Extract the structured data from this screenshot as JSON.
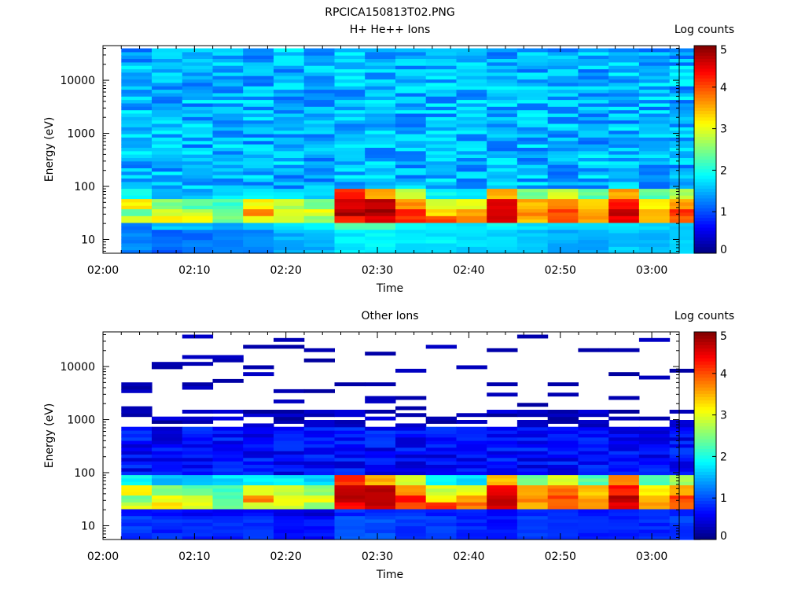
{
  "page_title": "RPCICA150813T02.PNG",
  "chart_data": [
    {
      "type": "heatmap",
      "title": "H+ He++ Ions",
      "xlabel": "Time",
      "ylabel": "Energy (eV)",
      "colorbar_label": "Log counts",
      "x_ticks": [
        "02:00",
        "02:10",
        "02:20",
        "02:30",
        "02:40",
        "02:50",
        "03:00"
      ],
      "xlim_minutes": [
        0,
        63
      ],
      "y_ticks": [
        "10",
        "100",
        "1000",
        "10000"
      ],
      "y_scale": "log",
      "ylim": [
        5.5,
        45000
      ],
      "colorbar_ticks": [
        "0",
        "1",
        "2",
        "3",
        "4",
        "5"
      ],
      "clim": [
        0,
        5
      ],
      "low_energy_profile": [
        [
          2.9,
          1.3,
          1.2,
          2.4,
          3.2,
          1.9
        ],
        [
          3.2,
          1.1,
          1.6,
          3.0,
          2.5,
          1.5
        ],
        [
          3.0,
          1.2,
          1.6,
          2.8,
          2.3,
          1.5
        ],
        [
          2.4,
          1.2,
          1.4,
          2.3,
          2.2,
          1.7
        ],
        [
          2.9,
          1.3,
          1.5,
          3.7,
          3.1,
          1.9
        ],
        [
          3.0,
          1.5,
          1.8,
          3.1,
          2.8,
          1.8
        ],
        [
          2.5,
          1.5,
          1.8,
          3.0,
          2.5,
          1.7
        ],
        [
          4.3,
          1.8,
          2.3,
          4.8,
          4.6,
          4.2
        ],
        [
          4.6,
          1.9,
          2.2,
          4.8,
          4.7,
          3.5
        ],
        [
          4.1,
          1.8,
          2.0,
          4.4,
          3.7,
          2.9
        ],
        [
          4.1,
          1.8,
          1.9,
          3.2,
          2.9,
          1.9
        ],
        [
          3.8,
          1.7,
          1.8,
          3.5,
          3.0,
          1.7
        ],
        [
          4.6,
          1.7,
          1.9,
          4.7,
          4.5,
          3.5
        ],
        [
          3.4,
          1.6,
          1.7,
          3.7,
          3.5,
          2.4
        ],
        [
          4.0,
          1.5,
          1.7,
          4.0,
          3.8,
          2.9
        ],
        [
          3.6,
          1.5,
          1.7,
          3.6,
          3.4,
          2.3
        ],
        [
          4.5,
          1.6,
          1.7,
          4.7,
          4.3,
          3.6
        ],
        [
          3.5,
          1.5,
          1.6,
          3.5,
          3.2,
          2.3
        ],
        [
          4.0,
          1.6,
          1.7,
          4.1,
          3.6,
          2.7
        ]
      ]
    },
    {
      "type": "heatmap",
      "title": "Other Ions",
      "xlabel": "Time",
      "ylabel": "Energy (eV)",
      "colorbar_label": "Log counts",
      "x_ticks": [
        "02:00",
        "02:10",
        "02:20",
        "02:30",
        "02:40",
        "02:50",
        "03:00"
      ],
      "xlim_minutes": [
        0,
        63
      ],
      "y_ticks": [
        "10",
        "100",
        "1000",
        "10000"
      ],
      "y_scale": "log",
      "ylim": [
        5.5,
        45000
      ],
      "colorbar_ticks": [
        "0",
        "1",
        "2",
        "3",
        "4",
        "5"
      ],
      "clim": [
        0,
        5
      ],
      "low_energy_profile": [
        [
          2.9,
          0.9,
          0.6,
          2.4,
          3.2,
          1.9
        ],
        [
          3.2,
          0.8,
          0.7,
          3.0,
          2.5,
          1.5
        ],
        [
          3.0,
          0.8,
          0.6,
          2.8,
          2.3,
          1.5
        ],
        [
          2.4,
          0.8,
          0.5,
          2.3,
          2.2,
          1.7
        ],
        [
          2.9,
          0.8,
          0.7,
          3.7,
          3.1,
          1.9
        ],
        [
          3.0,
          0.7,
          0.5,
          3.1,
          2.8,
          1.8
        ],
        [
          2.5,
          0.7,
          0.4,
          3.0,
          2.5,
          1.7
        ],
        [
          4.3,
          1.0,
          0.8,
          4.8,
          4.6,
          4.2
        ],
        [
          4.6,
          1.0,
          0.9,
          4.8,
          4.7,
          3.5
        ],
        [
          4.1,
          0.9,
          0.8,
          4.4,
          3.7,
          2.9
        ],
        [
          4.1,
          0.9,
          0.8,
          3.2,
          2.9,
          1.9
        ],
        [
          3.8,
          0.8,
          0.8,
          3.5,
          3.0,
          1.7
        ],
        [
          4.6,
          0.7,
          0.6,
          4.7,
          4.5,
          3.5
        ],
        [
          3.4,
          0.9,
          0.7,
          3.7,
          3.5,
          2.4
        ],
        [
          4.0,
          0.9,
          0.8,
          4.0,
          3.8,
          2.9
        ],
        [
          3.6,
          0.8,
          0.7,
          3.6,
          3.4,
          2.3
        ],
        [
          4.5,
          0.8,
          0.7,
          4.7,
          4.3,
          3.6
        ],
        [
          3.5,
          0.8,
          0.8,
          3.5,
          3.2,
          2.3
        ],
        [
          4.0,
          0.9,
          0.7,
          4.1,
          3.6,
          2.7
        ]
      ]
    }
  ]
}
